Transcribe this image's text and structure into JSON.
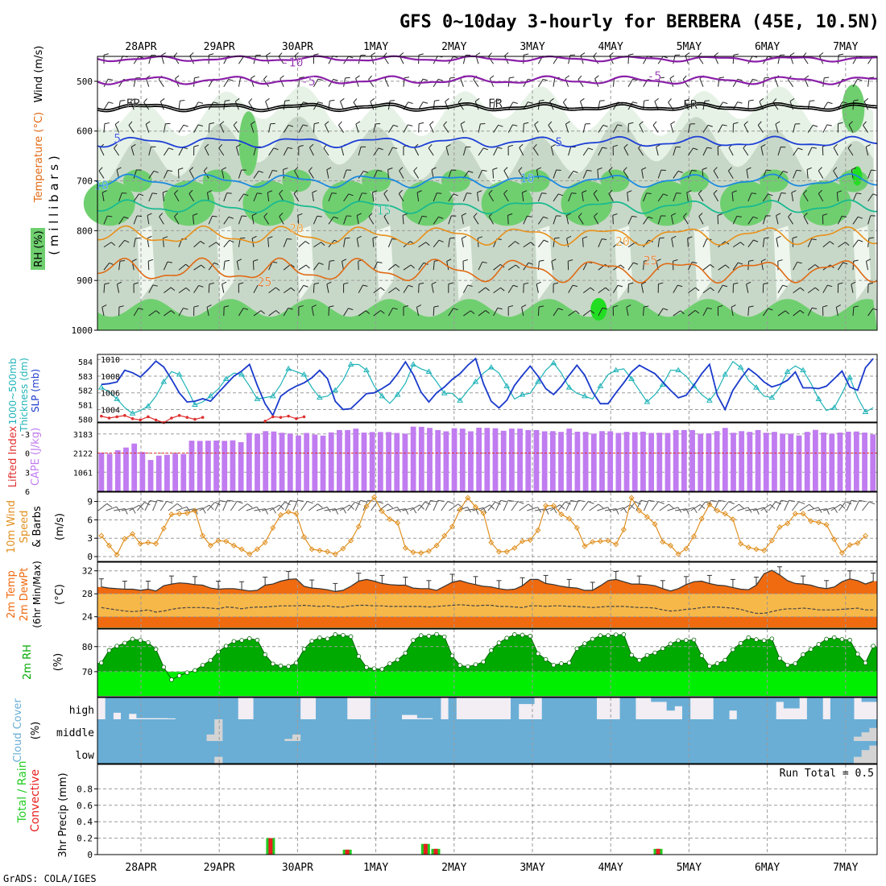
{
  "title": "GFS 0~10day 3-hourly for BERBERA (45E, 10.5N)",
  "credit": "GrADS: COLA/IGES",
  "dates": [
    "28APR",
    "29APR",
    "30APR",
    "1MAY",
    "2MAY",
    "3MAY",
    "4MAY",
    "5MAY",
    "6MAY",
    "7MAY"
  ],
  "colors": {
    "rh_light": "#e6f2e6",
    "rh_mid": "#c8d8c8",
    "rh_green": "#6fcf6f",
    "rh_bright": "#22dd22",
    "temp_neg10": "#8a1fa8",
    "temp_freeze": "#000000",
    "temp_5": "#1e3fd6",
    "temp_10": "#1c8be0",
    "temp_15": "#1aba90",
    "temp_20": "#e8901a",
    "temp_25": "#e06a14",
    "slp": "#1a3acc",
    "thickness": "#1fb3b8",
    "cape": "#c07cf0",
    "lifted": "#e03030",
    "wind10": "#e09020",
    "temp2m": "#f06a10",
    "dewpt": "#f7b84a",
    "rh2m_dark": "#00aa00",
    "rh2m_light": "#00ee00",
    "cloud": "#6aaed6",
    "rain": "#e82020",
    "precip_total": "#22cc22"
  },
  "chart_data": [
    {
      "type": "heatmap",
      "name": "upper-air",
      "ylabel_parts": [
        "RH (%)",
        "Temperature (°C)",
        "Wind (m/s)"
      ],
      "yunit": "( m i l l i b a r s )",
      "yticks": [
        500,
        600,
        700,
        800,
        900,
        1000
      ],
      "ylim": [
        450,
        1000
      ],
      "xlim": [
        0,
        9.8
      ],
      "contour_labels": [
        {
          "text": "-10",
          "x": 2.45,
          "y": 462
        },
        {
          "text": "-5",
          "x": 2.65,
          "y": 500
        },
        {
          "text": "-5",
          "x": 7.0,
          "y": 490
        },
        {
          "text": "FR",
          "x": 0.45,
          "y": 545
        },
        {
          "text": "FR",
          "x": 5.0,
          "y": 545
        },
        {
          "text": "FR",
          "x": 7.45,
          "y": 547
        },
        {
          "text": "5",
          "x": 0.25,
          "y": 615
        },
        {
          "text": "5",
          "x": 5.8,
          "y": 622
        },
        {
          "text": "10",
          "x": 0.05,
          "y": 710
        },
        {
          "text": "10",
          "x": 5.4,
          "y": 695
        },
        {
          "text": "15",
          "x": 3.6,
          "y": 760
        },
        {
          "text": "20",
          "x": 2.5,
          "y": 795
        },
        {
          "text": "20",
          "x": 6.6,
          "y": 822
        },
        {
          "text": "25",
          "x": 2.1,
          "y": 903
        },
        {
          "text": "25",
          "x": 6.95,
          "y": 860
        }
      ]
    },
    {
      "type": "line",
      "name": "slp-thickness",
      "ylabel_left": "1000~500mb Thickness (dm)",
      "ylabel_right": "SLP (mb)",
      "yticks_left": [
        580,
        581,
        582,
        583,
        584
      ],
      "yticks_right": [
        1004,
        1006,
        1008,
        1010
      ],
      "series": [
        {
          "name": "SLP",
          "axis": "right",
          "values": [
            1007.0,
            1007.1,
            1007.3,
            1008.7,
            1008.4,
            1007.9,
            1008.8,
            1009.8,
            1009.1,
            1007.6,
            1006.0,
            1004.9,
            1005.0,
            1005.3,
            1005.0,
            1006.0,
            1007.0,
            1008.0,
            1008.6,
            1009.4,
            1006.9,
            1004.7,
            1003.3,
            1005.6,
            1006.3,
            1006.8,
            1007.2,
            1007.8,
            1008.7,
            1007.7,
            1005.0,
            1004.0,
            1004.1,
            1005.0,
            1005.9,
            1006.0,
            1006.5,
            1007.1,
            1008.3,
            1009.7,
            1008.2,
            1006.1,
            1004.9,
            1006.0,
            1006.7,
            1007.6,
            1008.3,
            1009.3,
            1010.1,
            1007.1,
            1005.0,
            1004.2,
            1005.1,
            1006.9,
            1008.1,
            1009.2,
            1008.0,
            1006.5,
            1005.8,
            1006.8,
            1008.1,
            1009.3,
            1008.1,
            1006.1,
            1004.7,
            1004.7,
            1006.0,
            1007.2,
            1008.5,
            1009.3,
            1008.8,
            1008.3,
            1007.3,
            1006.3,
            1005.4,
            1005.7,
            1006.9,
            1008.3,
            1009.4,
            1005.7,
            1004.0,
            1006.3,
            1007.7,
            1008.9,
            1008.2,
            1007.3,
            1006.7,
            1007.0,
            1007.5,
            1008.5,
            1006.6,
            1006.6,
            1006.5,
            1006.8,
            1007.7,
            1008.6,
            1006.7,
            1006.3,
            1009.0,
            1010.1
          ]
        },
        {
          "name": "Thickness",
          "axis": "left",
          "values": [
            582.2,
            581.9,
            581.4,
            580.8,
            580.4,
            580.6,
            580.9,
            581.6,
            582.6,
            583.3,
            583.1,
            582.1,
            581.0,
            581.2,
            581.6,
            582.1,
            582.8,
            583.2,
            583.1,
            582.3,
            581.4,
            581.5,
            581.6,
            582.4,
            583.5,
            583.3,
            583.1,
            582.2,
            581.5,
            581.6,
            582.0,
            582.7,
            583.8,
            583.8,
            583.4,
            582.3,
            581.6,
            581.1,
            581.7,
            582.5,
            583.8,
            583.5,
            583.3,
            582.6,
            581.8,
            581.8,
            581.3,
            582.0,
            582.6,
            583.2,
            583.6,
            583.2,
            582.3,
            581.4,
            581.7,
            581.8,
            582.6,
            583.4,
            583.9,
            583.2,
            582.2,
            581.8,
            581.6,
            581.4,
            582.3,
            583.1,
            583.4,
            583.5,
            582.8,
            582.0,
            581.2,
            581.7,
            582.4,
            583.4,
            583.4,
            583.0,
            582.3,
            581.7,
            581.3,
            582.0,
            583.1,
            584.0,
            583.6,
            582.7,
            582.2,
            581.6,
            581.5,
            582.2,
            583.3,
            583.7,
            583.4,
            582.5,
            581.4,
            580.6,
            580.8,
            581.8,
            582.9,
            581.5,
            580.5,
            580.8
          ]
        }
      ]
    },
    {
      "type": "bar",
      "name": "lifted-cape",
      "ylabel_left": "Lifted Index",
      "ylabel_right": "CAPE (J/kg)",
      "yticks_left": [
        -3,
        0,
        3,
        6
      ],
      "yticks_right": [
        1061,
        2122,
        3183
      ],
      "lifted_index_values": [
        -5.8,
        -5.5,
        -5.7,
        -5.9,
        -5.4,
        -5.2,
        -5.7,
        -5.2,
        -4.8,
        -5.5,
        -5.9,
        -5.6,
        -5.3,
        -5.6,
        -5.0,
        -5.7,
        -5.6,
        -5.8,
        -5.4,
        -5.7
      ],
      "cape_values": [
        2150,
        2080,
        2280,
        2430,
        2650,
        2180,
        1740,
        1980,
        2030,
        2090,
        2070,
        2810,
        2800,
        2810,
        2820,
        2800,
        2830,
        2730,
        3240,
        3200,
        3340,
        3320,
        3250,
        3210,
        3100,
        3240,
        3150,
        3090,
        3270,
        3400,
        3400,
        3480,
        3260,
        3290,
        3290,
        3290,
        3240,
        3200,
        3590,
        3580,
        3520,
        3400,
        3330,
        3500,
        3480,
        3330,
        3530,
        3520,
        3500,
        3360,
        3480,
        3480,
        3400,
        3400,
        3330,
        3340,
        3300,
        3480,
        3310,
        3300,
        3200,
        3340,
        3330,
        3240,
        3300,
        3280,
        3310,
        3240,
        3250,
        3240,
        3400,
        3400,
        3400,
        3200,
        3220,
        3340,
        3520,
        3250,
        3340,
        3300,
        3400,
        3250,
        3300,
        3200,
        3200,
        3100,
        3300,
        3410,
        3260,
        3200,
        3260,
        3310,
        3320,
        3260,
        3160
      ]
    },
    {
      "type": "line",
      "name": "wind10m",
      "ylabel": "10m Wind Speed & Barbs (m/s)",
      "ylabel_parts": [
        "10m Wind",
        "Speed",
        "& Barbs",
        "(m/s)"
      ],
      "yticks": [
        0,
        3,
        6,
        9
      ],
      "values": [
        3.4,
        1.8,
        0.3,
        2.9,
        3.7,
        2.1,
        2.3,
        2.1,
        4.6,
        6.9,
        7.0,
        7.1,
        7.5,
        3.4,
        1.8,
        2.6,
        2.5,
        1.8,
        1.2,
        0.4,
        1.2,
        2.3,
        4.7,
        6.8,
        7.3,
        7.0,
        3.2,
        1.2,
        1.0,
        0.8,
        0.4,
        1.3,
        2.6,
        4.9,
        8.2,
        9.7,
        7.4,
        6.1,
        5.5,
        1.4,
        0.7,
        0.6,
        0.9,
        1.8,
        3.4,
        4.9,
        7.7,
        9.6,
        8.1,
        7.1,
        2.3,
        0.8,
        0.8,
        1.4,
        2.5,
        2.7,
        4.3,
        8.3,
        8.3,
        6.9,
        6.2,
        4.7,
        1.7,
        2.4,
        2.5,
        2.6,
        2.0,
        4.4,
        9.6,
        7.5,
        6.5,
        5.3,
        2.4,
        1.8,
        0.4,
        1.3,
        3.3,
        6.2,
        8.5,
        7.5,
        7.0,
        6.1,
        2.1,
        1.5,
        1.2,
        1.0,
        2.6,
        4.8,
        5.4,
        7.0,
        7.0,
        5.8,
        5.6,
        5.2,
        2.8,
        0.6,
        1.9,
        2.2,
        3.4
      ]
    },
    {
      "type": "area",
      "name": "temp2m",
      "ylabel": "2m Temp 2m DewPt (6hr Min/Max) (°C)",
      "ylabel_parts": [
        "2m Temp",
        "2m DewPt",
        "(6hr Min/Max)",
        "(°C)"
      ],
      "yticks": [
        24,
        28,
        32
      ],
      "ylim": [
        22,
        33.5
      ],
      "temp_values": [
        29.2,
        29.0,
        28.9,
        28.8,
        28.8,
        28.6,
        28.8,
        28.5,
        29.4,
        29.7,
        29.9,
        29.8,
        29.6,
        29.5,
        29.0,
        28.8,
        28.9,
        28.9,
        28.7,
        28.5,
        28.6,
        29.5,
        29.7,
        30.2,
        30.5,
        30.6,
        29.3,
        29.0,
        28.9,
        28.7,
        28.4,
        28.6,
        29.3,
        30.2,
        30.5,
        30.2,
        29.8,
        29.6,
        29.5,
        29.5,
        29.0,
        28.9,
        28.9,
        28.6,
        29.3,
        30.0,
        30.3,
        29.9,
        29.6,
        29.3,
        29.2,
        28.9,
        28.7,
        28.8,
        29.4,
        30.5,
        30.5,
        29.8,
        29.6,
        29.3,
        29.1,
        29.0,
        28.6,
        28.6,
        29.4,
        30.3,
        30.5,
        30.1,
        29.7,
        29.7,
        29.6,
        29.4,
        28.9,
        28.5,
        28.9,
        29.6,
        30.1,
        30.2,
        29.8,
        29.5,
        29.4,
        29.1,
        28.8,
        28.7,
        29.5,
        31.5,
        32.1,
        31.3,
        30.3,
        29.8,
        29.7,
        29.5,
        29.1,
        28.9,
        29.2,
        30.1,
        30.6,
        30.3,
        29.7,
        30.2
      ],
      "dewpt_values": [
        25.6,
        25.4,
        25.2,
        25.0,
        24.9,
        25.0,
        25.2,
        24.8,
        25.0,
        25.3,
        25.5,
        25.6,
        25.6,
        25.6,
        25.5,
        25.4,
        25.7,
        25.6,
        25.4,
        25.6,
        25.7,
        25.7,
        25.8,
        25.9,
        25.9,
        25.9,
        26.0,
        25.9,
        25.8,
        25.9,
        25.7,
        25.7,
        25.9,
        26.0,
        26.0,
        25.9,
        25.9,
        25.8,
        25.8,
        25.8,
        25.8,
        25.8,
        25.7,
        25.8,
        25.9,
        26.0,
        26.1,
        26.0,
        25.9,
        26.0,
        26.0,
        25.8,
        25.8,
        25.7,
        25.6,
        25.9,
        25.9,
        25.8,
        25.9,
        25.9,
        25.8,
        25.8,
        25.7,
        25.6,
        25.7,
        25.8,
        25.8,
        25.8,
        25.7,
        25.6,
        25.6,
        25.5,
        25.2,
        25.0,
        25.1,
        25.3,
        25.4,
        25.6,
        25.7,
        25.7,
        25.6,
        25.5,
        25.3,
        24.9,
        24.6,
        24.6,
        24.9,
        25.2,
        25.4,
        25.4,
        25.5,
        25.4,
        25.2,
        25.2,
        25.2,
        25.3,
        25.4,
        25.5,
        25.2,
        25.2
      ]
    },
    {
      "type": "area",
      "name": "rh2m",
      "ylabel": "2m RH (%)",
      "yticks": [
        70,
        80
      ],
      "ylim": [
        60,
        87
      ],
      "values": [
        73.5,
        78.5,
        80.2,
        81.4,
        83.0,
        82.5,
        81.6,
        78.9,
        71.8,
        66.8,
        68.4,
        69.6,
        70.5,
        72.6,
        74.5,
        77.9,
        80.2,
        82.1,
        82.5,
        83.2,
        82.6,
        76.8,
        73.1,
        72.3,
        72.1,
        73.5,
        79.0,
        82.2,
        83.5,
        83.1,
        84.8,
        84.5,
        84.0,
        76.1,
        71.7,
        71.2,
        71.0,
        73.2,
        74.7,
        77.4,
        82.5,
        84.4,
        84.2,
        84.9,
        83.9,
        76.3,
        72.5,
        72.0,
        72.8,
        73.9,
        78.5,
        81.5,
        83.4,
        84.8,
        84.6,
        84.2,
        77.2,
        74.9,
        72.6,
        73.2,
        73.5,
        79.2,
        81.2,
        83.0,
        84.4,
        84.4,
        84.7,
        84.8,
        76.6,
        74.6,
        76.5,
        77.5,
        79.2,
        81.1,
        82.4,
        82.5,
        82.7,
        76.4,
        72.2,
        73.2,
        74.6,
        78.8,
        81.3,
        83.6,
        82.8,
        82.4,
        83.1,
        75.3,
        72.6,
        73.2,
        76.8,
        78.9,
        80.9,
        83.0,
        83.6,
        82.9,
        82.6,
        77.0,
        73.5,
        80.2
      ]
    },
    {
      "type": "bar",
      "name": "cloud-cover",
      "ylabel": "Cloud Cover (%)",
      "levels": [
        "high",
        "middle",
        "low"
      ],
      "high_values": [
        0,
        100,
        70,
        100,
        75,
        95,
        95,
        95,
        95,
        96,
        100,
        100,
        100,
        100,
        100,
        100,
        100,
        100,
        0,
        0,
        100,
        100,
        100,
        100,
        100,
        100,
        0,
        0,
        100,
        100,
        100,
        100,
        0,
        0,
        0,
        100,
        100,
        100,
        100,
        80,
        80,
        95,
        95,
        100,
        0,
        100,
        0,
        0,
        0,
        0,
        0,
        0,
        0,
        100,
        30,
        30,
        0,
        100,
        100,
        100,
        100,
        100,
        100,
        100,
        0,
        0,
        0,
        100,
        100,
        0,
        0,
        20,
        20,
        60,
        40,
        100,
        0,
        0,
        0,
        100,
        100,
        60,
        100,
        100,
        100,
        100,
        100,
        20,
        50,
        50,
        0,
        100,
        100,
        0,
        100,
        100,
        100,
        0,
        20,
        20
      ],
      "middle_values": [
        0,
        0,
        0,
        0,
        0,
        0,
        0,
        0,
        0,
        0,
        0,
        0,
        0,
        0,
        30,
        100,
        0,
        0,
        0,
        0,
        0,
        0,
        0,
        0,
        10,
        30,
        0,
        0,
        0,
        0,
        0,
        0,
        0,
        0,
        0,
        0,
        0,
        0,
        0,
        0,
        0,
        0,
        0,
        0,
        0,
        0,
        0,
        0,
        0,
        0,
        0,
        0,
        0,
        0,
        0,
        0,
        0,
        0,
        0,
        0,
        0,
        0,
        0,
        0,
        0,
        0,
        0,
        0,
        0,
        0,
        0,
        0,
        0,
        0,
        0,
        0,
        0,
        0,
        0,
        0,
        0,
        0,
        0,
        0,
        0,
        0,
        0,
        0,
        0,
        0,
        0,
        0,
        0,
        0,
        0,
        0,
        0,
        20,
        40,
        60
      ],
      "low_values": [
        0,
        0,
        0,
        0,
        0,
        0,
        0,
        0,
        0,
        0,
        0,
        0,
        0,
        0,
        0,
        30,
        0,
        0,
        0,
        0,
        0,
        0,
        0,
        0,
        0,
        0,
        0,
        0,
        0,
        0,
        0,
        0,
        0,
        0,
        0,
        0,
        0,
        0,
        0,
        0,
        0,
        0,
        0,
        0,
        0,
        0,
        0,
        0,
        0,
        0,
        0,
        0,
        0,
        0,
        0,
        0,
        0,
        0,
        0,
        0,
        0,
        0,
        0,
        0,
        0,
        0,
        0,
        0,
        0,
        0,
        0,
        0,
        0,
        0,
        0,
        0,
        0,
        0,
        0,
        0,
        0,
        0,
        0,
        0,
        0,
        0,
        0,
        0,
        0,
        0,
        0,
        0,
        0,
        0,
        0,
        0,
        0,
        30,
        60,
        80
      ]
    },
    {
      "type": "bar",
      "name": "precip",
      "ylabel_parts": [
        "Total / Rain",
        "Convective",
        "3hr Precip (mm)"
      ],
      "yticks": [
        0,
        0.2,
        0.4,
        0.6,
        0.8
      ],
      "ylim": [
        0,
        1.0
      ],
      "run_total": "Run Total = 0.5",
      "bars": [
        {
          "x": 1.65,
          "total": 0.2,
          "conv": 0.2
        },
        {
          "x": 2.63,
          "total": 0.06,
          "conv": 0.06
        },
        {
          "x": 3.63,
          "total": 0.13,
          "conv": 0.13
        },
        {
          "x": 3.76,
          "total": 0.07,
          "conv": 0.07
        },
        {
          "x": 6.6,
          "total": 0.07,
          "conv": 0.07
        }
      ]
    }
  ]
}
